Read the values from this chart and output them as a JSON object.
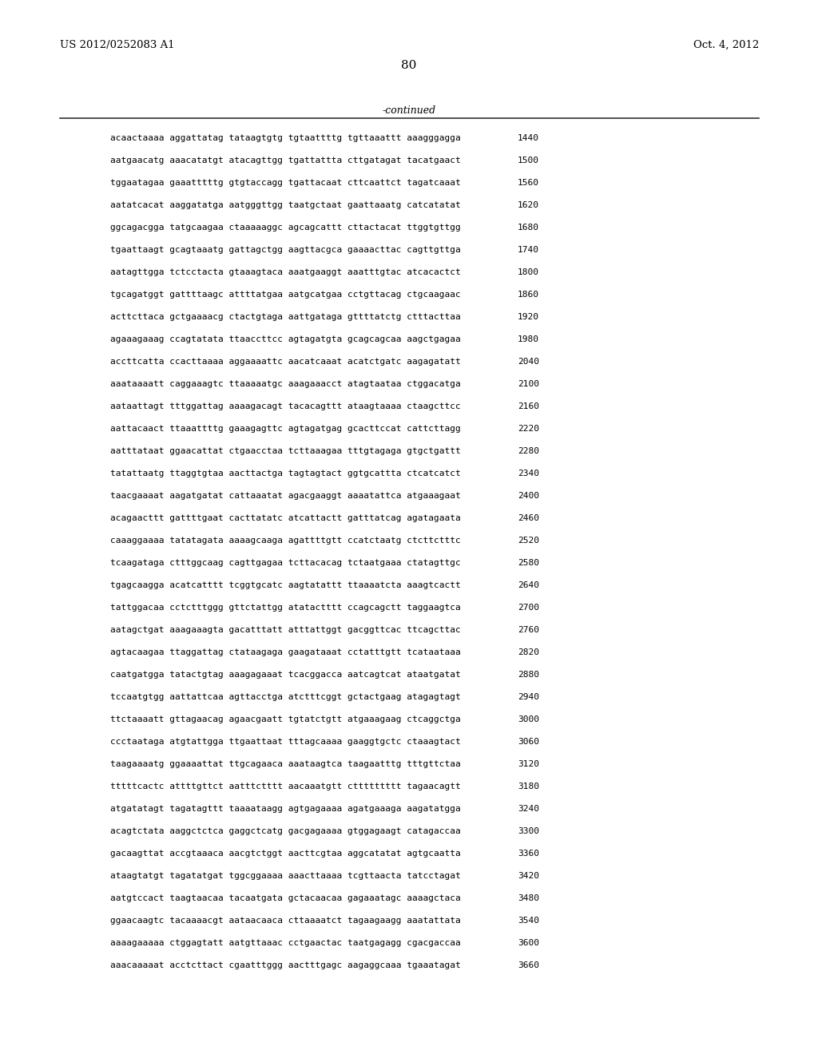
{
  "header_left": "US 2012/0252083 A1",
  "header_right": "Oct. 4, 2012",
  "page_number": "80",
  "continued_label": "-continued",
  "background_color": "#ffffff",
  "text_color": "#000000",
  "font_size": 8.0,
  "header_font_size": 9.5,
  "page_num_font_size": 11,
  "continued_font_size": 9,
  "sequence_lines": [
    [
      "acaactaaaa aggattatag tataagtgtg tgtaattttg tgttaaattt aaagggagga",
      "1440"
    ],
    [
      "aatgaacatg aaacatatgt atacagttgg tgattattta cttgatagat tacatgaact",
      "1500"
    ],
    [
      "tggaatagaa gaaatttttg gtgtaccagg tgattacaat cttcaattct tagatcaaat",
      "1560"
    ],
    [
      "aatatcacat aaggatatga aatgggttgg taatgctaat gaattaaatg catcatatat",
      "1620"
    ],
    [
      "ggcagacgga tatgcaagaa ctaaaaaggc agcagcattt cttactacat ttggtgttgg",
      "1680"
    ],
    [
      "tgaattaagt gcagtaaatg gattagctgg aagttacgca gaaaacttac cagttgttga",
      "1740"
    ],
    [
      "aatagttgga tctcctacta gtaaagtaca aaatgaaggt aaatttgtac atcacactct",
      "1800"
    ],
    [
      "tgcagatggt gattttaagc attttatgaa aatgcatgaa cctgttacag ctgcaagaac",
      "1860"
    ],
    [
      "acttcttaca gctgaaaacg ctactgtaga aattgataga gttttatctg ctttacttaa",
      "1920"
    ],
    [
      "agaaagaaag ccagtatata ttaaccttcc agtagatgta gcagcagcaa aagctgagaa",
      "1980"
    ],
    [
      "accttcatta ccacttaaaa aggaaaattc aacatcaaat acatctgatc aagagatatt",
      "2040"
    ],
    [
      "aaataaaatt caggaaagtc ttaaaaatgc aaagaaacct atagtaataa ctggacatga",
      "2100"
    ],
    [
      "aataattagt tttggattag aaaagacagt tacacagttt ataagtaaaa ctaagcttcc",
      "2160"
    ],
    [
      "aattacaact ttaaattttg gaaagagttc agtagatgag gcacttccat cattcttagg",
      "2220"
    ],
    [
      "aatttataat ggaacattat ctgaacctaa tcttaaagaa tttgtagaga gtgctgattt",
      "2280"
    ],
    [
      "tatattaatg ttaggtgtaa aacttactga tagtagtact ggtgcattta ctcatcatct",
      "2340"
    ],
    [
      "taacgaaaat aagatgatat cattaaatat agacgaaggt aaaatattca atgaaagaat",
      "2400"
    ],
    [
      "acagaacttt gattttgaat cacttatatc atcattactt gatttatcag agatagaata",
      "2460"
    ],
    [
      "caaaggaaaa tatatagata aaaagcaaga agattttgtt ccatctaatg ctcttctttc",
      "2520"
    ],
    [
      "tcaagataga ctttggcaag cagttgagaa tcttacacag tctaatgaaa ctatagttgc",
      "2580"
    ],
    [
      "tgagcaagga acatcatttt tcggtgcatc aagtatattt ttaaaatcta aaagtcactt",
      "2640"
    ],
    [
      "tattggacaa cctctttggg gttctattgg atatactttt ccagcagctt taggaagtca",
      "2700"
    ],
    [
      "aatagctgat aaagaaagta gacatttatt atttattggt gacggttcac ttcagcttac",
      "2760"
    ],
    [
      "agtacaagaa ttaggattag ctataagaga gaagataaat cctatttgtt tcataataaa",
      "2820"
    ],
    [
      "caatgatgga tatactgtag aaagagaaat tcacggacca aatcagtcat ataatgatat",
      "2880"
    ],
    [
      "tccaatgtgg aattattcaa agttacctga atctttcggt gctactgaag atagagtagt",
      "2940"
    ],
    [
      "ttctaaaatt gttagaacag agaacgaatt tgtatctgtt atgaaagaag ctcaggctga",
      "3000"
    ],
    [
      "ccctaataga atgtattgga ttgaattaat tttagcaaaa gaaggtgctc ctaaagtact",
      "3060"
    ],
    [
      "taagaaaatg ggaaaattat ttgcagaaca aaataagtca taagaatttg tttgttctaa",
      "3120"
    ],
    [
      "tttttcactc attttgttct aatttctttt aacaaatgtt cttttttttt tagaacagtt",
      "3180"
    ],
    [
      "atgatatagt tagatagttt taaaataagg agtgagaaaa agatgaaaga aagatatgga",
      "3240"
    ],
    [
      "acagtctata aaggctctca gaggctcatg gacgagaaaa gtggagaagt catagaccaa",
      "3300"
    ],
    [
      "gacaagttat accgtaaaca aacgtctggt aacttcgtaa aggcatatat agtgcaatta",
      "3360"
    ],
    [
      "ataagtatgt tagatatgat tggcggaaaa aaacttaaaa tcgttaacta tatcctagat",
      "3420"
    ],
    [
      "aatgtccact taagtaacaa tacaatgata gctacaacaa gagaaatagc aaaagctaca",
      "3480"
    ],
    [
      "ggaacaagtc tacaaaacgt aataacaaca cttaaaatct tagaagaagg aaatattata",
      "3540"
    ],
    [
      "aaaagaaaaa ctggagtatt aatgttaaac cctgaactac taatgagagg cgacgaccaa",
      "3600"
    ],
    [
      "aaacaaaaat acctcttact cgaatttggg aactttgagc aagaggcaaa tgaaatagat",
      "3660"
    ]
  ]
}
